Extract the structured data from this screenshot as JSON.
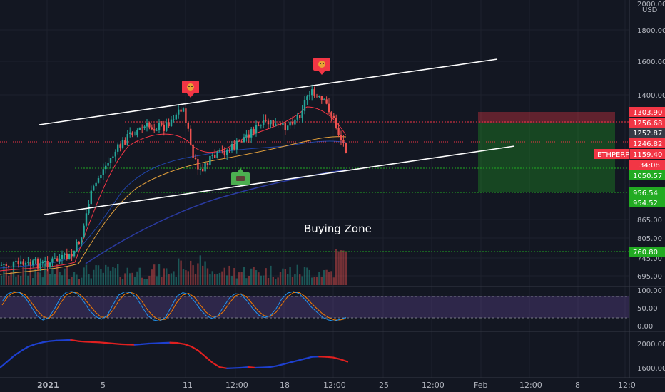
{
  "chart_data": {
    "type": "candlestick",
    "symbol": "ETHPERP",
    "currency_label": "USD",
    "x_labels": [
      "2021",
      "5",
      "11",
      "12:00",
      "18",
      "12:00",
      "25",
      "12:00",
      "Feb",
      "12:00",
      "8",
      "12:0"
    ],
    "price_axis": {
      "ticks": [
        695.0,
        745.0,
        805.0,
        865.0,
        1600.0,
        1800.0,
        2000.0
      ],
      "ticks_text": [
        "695.00",
        "745.00",
        "805.00",
        "865.00",
        "1600.00",
        "1800.00",
        "2000.00"
      ],
      "scale": "log",
      "range": [
        660,
        2040
      ]
    },
    "tick_1400": "1400.00",
    "price_tags": [
      {
        "label": "1303.90",
        "color": "#f23645",
        "price": 1303.9
      },
      {
        "label": "1256.68",
        "color": "#f23645",
        "price": 1256.68
      },
      {
        "label": "1252.87",
        "color": "#363a45",
        "price": 1252.87
      },
      {
        "label": "1246.82",
        "color": "#f23645",
        "price": 1246.82
      },
      {
        "label": "1159.40",
        "color": "#f23645",
        "price": 1159.4,
        "prefix": "ETHPERP"
      },
      {
        "label": "34:08",
        "color": "#f23645",
        "price": 1132
      },
      {
        "label": "1050.57",
        "color": "#22ab22",
        "price": 1050.57
      },
      {
        "label": "956.54",
        "color": "#22ab22",
        "price": 956.54
      },
      {
        "label": "954.52",
        "color": "#22ab22",
        "price": 954.52
      },
      {
        "label": "760.80",
        "color": "#22ab22",
        "price": 760.8
      }
    ],
    "annotations": [
      {
        "text": "Buying Zone"
      }
    ],
    "stoch_rsi": {
      "ticks_text": [
        "100.00",
        "50.00",
        "0.00"
      ],
      "upper_band": 80,
      "lower_band": 20,
      "k": [
        70,
        92,
        98,
        95,
        80,
        55,
        30,
        18,
        25,
        50,
        80,
        96,
        98,
        90,
        70,
        45,
        28,
        20,
        30,
        60,
        88,
        97,
        95,
        82,
        55,
        30,
        18,
        15,
        25,
        55,
        85,
        95,
        90,
        70,
        48,
        30,
        22,
        30,
        55,
        80,
        92,
        90,
        72,
        50,
        32,
        25,
        30,
        50,
        78,
        94,
        98,
        92,
        75,
        55,
        40,
        25,
        18,
        15,
        20,
        25
      ],
      "d": [
        60,
        85,
        95,
        96,
        88,
        68,
        45,
        28,
        22,
        38,
        65,
        88,
        96,
        94,
        80,
        60,
        40,
        26,
        26,
        45,
        72,
        90,
        96,
        90,
        70,
        45,
        28,
        18,
        20,
        40,
        68,
        88,
        93,
        82,
        60,
        40,
        28,
        28,
        42,
        66,
        86,
        92,
        82,
        62,
        42,
        30,
        28,
        40,
        62,
        84,
        95,
        95,
        84,
        66,
        50,
        35,
        25,
        18,
        18,
        22
      ]
    },
    "oscillator": {
      "ticks_text": [
        "2000.00",
        "1600.00"
      ],
      "values": [
        1600,
        1700,
        1800,
        1880,
        1950,
        1990,
        2020,
        2040,
        2050,
        2055,
        2060,
        2040,
        2030,
        2025,
        2020,
        2010,
        2000,
        1990,
        1985,
        1980,
        1990,
        2000,
        2005,
        2010,
        2015,
        2010,
        1990,
        1950,
        1880,
        1780,
        1680,
        1610,
        1590,
        1595,
        1600,
        1610,
        1600,
        1605,
        1610,
        1630,
        1660,
        1690,
        1720,
        1750,
        1780,
        1785,
        1780,
        1770,
        1740,
        1700
      ]
    }
  }
}
